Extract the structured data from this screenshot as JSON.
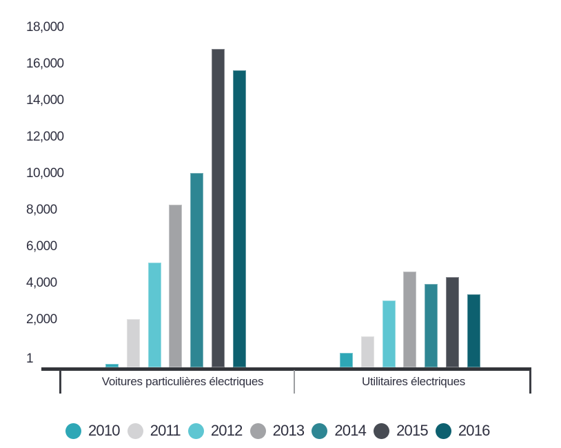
{
  "chart_data": {
    "type": "bar",
    "title": "",
    "categories": [
      "Voitures particulières électriques",
      "Utilitaires électriques"
    ],
    "series": [
      {
        "name": "2010",
        "color": "#2ea7b6",
        "texture": "solid",
        "values": [
          180,
          780
        ]
      },
      {
        "name": "2011",
        "color": "#d3d3d5",
        "texture": "dots",
        "values": [
          2550,
          1650
        ]
      },
      {
        "name": "2012",
        "color": "#5ec6d2",
        "texture": "solid",
        "values": [
          5550,
          3540
        ]
      },
      {
        "name": "2013",
        "color": "#a2a3a6",
        "texture": "diagonal",
        "values": [
          8600,
          5060
        ]
      },
      {
        "name": "2014",
        "color": "#2e8693",
        "texture": "dots",
        "values": [
          10300,
          4400
        ]
      },
      {
        "name": "2015",
        "color": "#474b53",
        "texture": "solid",
        "values": [
          16870,
          4800
        ]
      },
      {
        "name": "2016",
        "color": "#0d606f",
        "texture": "solid",
        "values": [
          15740,
          3880
        ]
      }
    ],
    "y_axis": {
      "tick_labels": [
        "18,000",
        "16,000",
        "14,000",
        "12,000",
        "10,000",
        "8,000",
        "6,000",
        "4,000",
        "2,000",
        "1"
      ],
      "ylim": [
        0,
        18000
      ],
      "grid": false
    },
    "legend": {
      "position": "bottom",
      "entries": [
        "2010",
        "2011",
        "2012",
        "2013",
        "2014",
        "2015",
        "2016"
      ]
    }
  },
  "colors": {
    "background": "#ffffff",
    "axis_line": "#33353a",
    "text": "#2f3040",
    "separator_mid": "#9b9da0"
  }
}
